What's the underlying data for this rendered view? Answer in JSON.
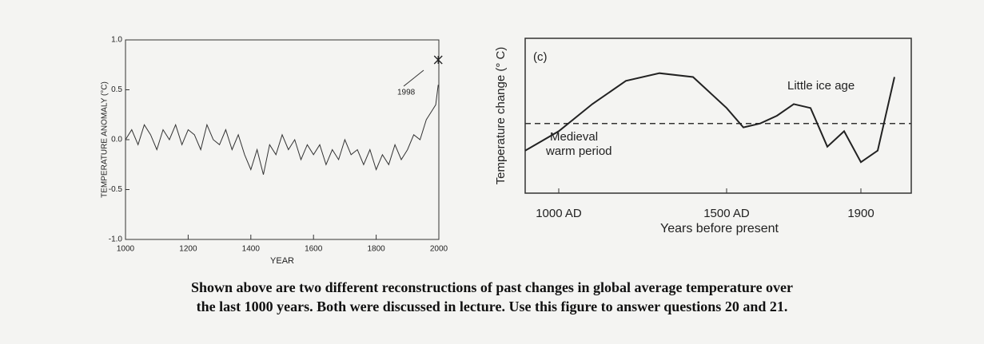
{
  "chart_data": [
    {
      "type": "line",
      "xlabel": "YEAR",
      "ylabel": "TEMPERATURE ANOMALY (°C)",
      "annotations": [
        "1998"
      ],
      "marker": {
        "x": 1998,
        "y": 0.8
      },
      "x": [
        1000,
        1020,
        1040,
        1060,
        1080,
        1100,
        1120,
        1140,
        1160,
        1180,
        1200,
        1220,
        1240,
        1260,
        1280,
        1300,
        1320,
        1340,
        1360,
        1380,
        1400,
        1420,
        1440,
        1460,
        1480,
        1500,
        1520,
        1540,
        1560,
        1580,
        1600,
        1620,
        1640,
        1660,
        1680,
        1700,
        1720,
        1740,
        1760,
        1780,
        1800,
        1820,
        1840,
        1860,
        1880,
        1900,
        1920,
        1940,
        1960,
        1980,
        1990,
        1998
      ],
      "series": [
        {
          "color": "#333333",
          "values": [
            0.0,
            0.1,
            -0.05,
            0.15,
            0.05,
            -0.1,
            0.1,
            0.0,
            0.15,
            -0.05,
            0.1,
            0.05,
            -0.1,
            0.15,
            0.0,
            -0.05,
            0.1,
            -0.1,
            0.05,
            -0.15,
            -0.3,
            -0.1,
            -0.35,
            -0.05,
            -0.15,
            0.05,
            -0.1,
            0.0,
            -0.2,
            -0.05,
            -0.15,
            -0.05,
            -0.25,
            -0.1,
            -0.2,
            0.0,
            -0.15,
            -0.1,
            -0.25,
            -0.1,
            -0.3,
            -0.15,
            -0.25,
            -0.05,
            -0.2,
            -0.1,
            0.05,
            0.0,
            0.2,
            0.3,
            0.35,
            0.55
          ]
        }
      ],
      "xlim": [
        1000,
        2000
      ],
      "ylim": [
        -1,
        1
      ],
      "xticks": [
        1000,
        1200,
        1400,
        1600,
        1800,
        2000
      ],
      "yticks": [
        {
          "value": -1,
          "label": "-1.0"
        },
        -0.5,
        {
          "value": 0,
          "label": "0.0"
        },
        0.5,
        {
          "value": 1,
          "label": "1.0"
        }
      ]
    },
    {
      "type": "line",
      "xlabel": "Years before present",
      "ylabel": "Temperature change (° C)",
      "annotations": [
        "(c)",
        "Little ice age",
        "Medieval",
        "warm period"
      ],
      "baseline": 0,
      "x": [
        900,
        1000,
        1100,
        1200,
        1300,
        1400,
        1450,
        1500,
        1550,
        1600,
        1650,
        1700,
        1750,
        1800,
        1850,
        1900,
        1950,
        2000
      ],
      "series": [
        {
          "color": "#222222",
          "values": [
            -0.35,
            -0.1,
            0.25,
            0.55,
            0.65,
            0.6,
            0.4,
            0.2,
            -0.05,
            0.0,
            0.1,
            0.25,
            0.2,
            -0.3,
            -0.1,
            -0.5,
            -0.35,
            0.6
          ]
        }
      ],
      "xlim": [
        900,
        2050
      ],
      "ylim": [
        -0.9,
        1.1
      ],
      "xticks": [
        {
          "value": 1000,
          "label": "1000 AD"
        },
        {
          "value": 1500,
          "label": "1500 AD"
        },
        1900
      ]
    }
  ],
  "caption": [
    "Shown above are two different reconstructions of past changes in global average temperature over",
    "the last 1000 years. Both were discussed in lecture. Use this figure to answer questions 20 and 21."
  ]
}
